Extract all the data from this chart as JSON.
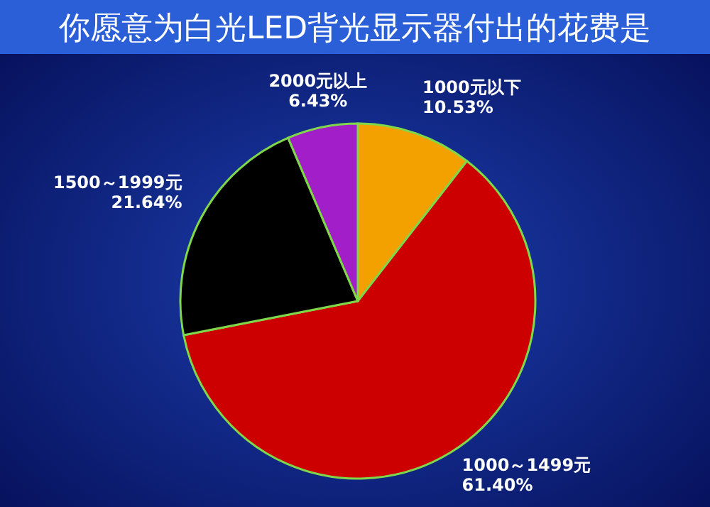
{
  "chart_data": {
    "type": "pie",
    "title": "你愿意为白光LED背光显示器付出的花费是",
    "categories": [
      "1000元以下",
      "1000～1499元",
      "1500～1999元",
      "2000元以上"
    ],
    "values": [
      10.53,
      61.4,
      21.64,
      6.43
    ],
    "value_labels": [
      "10.53%",
      "61.40%",
      "21.64%",
      "6.43%"
    ],
    "colors": [
      "#f2a100",
      "#cc0000",
      "#000000",
      "#a21ec8"
    ]
  }
}
